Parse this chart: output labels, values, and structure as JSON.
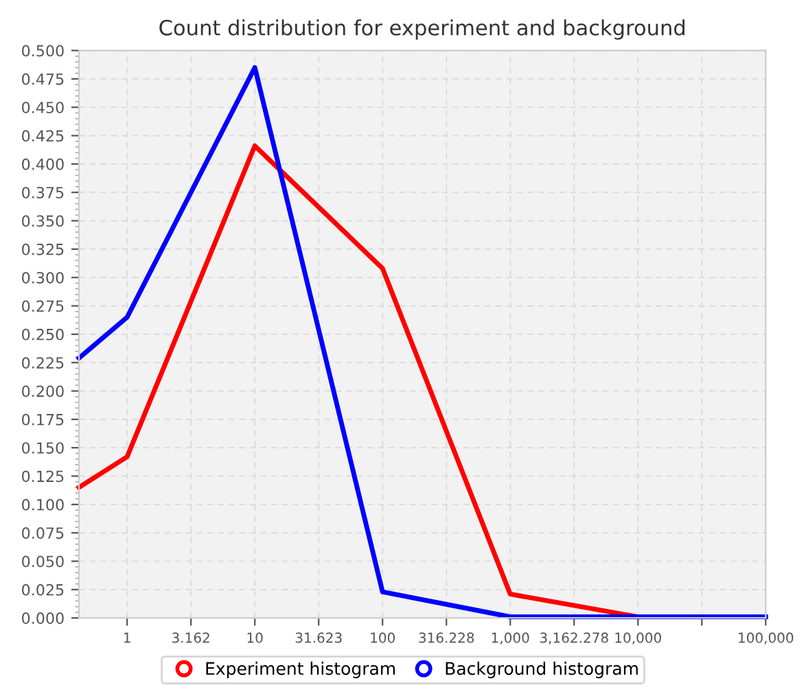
{
  "chart_data": {
    "type": "line",
    "title": "Count distribution for experiment and background",
    "x": [
      0.42,
      1,
      10,
      100,
      1000,
      10000,
      100000
    ],
    "series": [
      {
        "name": "Experiment histogram",
        "color": "#ff0000",
        "values": [
          0.115,
          0.142,
          0.416,
          0.308,
          0.021,
          0.001,
          null
        ]
      },
      {
        "name": "Background histogram",
        "color": "#0000ff",
        "values": [
          0.229,
          0.265,
          0.485,
          0.023,
          0.001,
          0.001,
          0.001
        ]
      }
    ],
    "log": "x",
    "xlim": [
      0.42,
      100000
    ],
    "xticks": [
      1,
      {
        "value": 3.162,
        "label": "3.162"
      },
      10,
      {
        "value": 31.623,
        "label": "31.623"
      },
      100,
      {
        "value": 316.228,
        "label": "316.228"
      },
      {
        "value": 1000,
        "label": "1,000"
      },
      {
        "value": 3162.278,
        "label": "3,162.278"
      },
      {
        "value": 10000,
        "label": "10,000"
      },
      {
        "value": 31622.777,
        "label": null
      },
      {
        "value": 100000,
        "label": "100,000"
      }
    ],
    "ylim": [
      0,
      0.5
    ],
    "yticks": [
      {
        "value": 0,
        "label": "0.000"
      },
      {
        "value": 0.025,
        "label": "0.025"
      },
      {
        "value": 0.05,
        "label": "0.050"
      },
      {
        "value": 0.075,
        "label": "0.075"
      },
      {
        "value": 0.1,
        "label": "0.100"
      },
      {
        "value": 0.125,
        "label": "0.125"
      },
      {
        "value": 0.15,
        "label": "0.150"
      },
      {
        "value": 0.175,
        "label": "0.175"
      },
      {
        "value": 0.2,
        "label": "0.200"
      },
      {
        "value": 0.225,
        "label": "0.225"
      },
      {
        "value": 0.25,
        "label": "0.250"
      },
      {
        "value": 0.275,
        "label": "0.275"
      },
      {
        "value": 0.3,
        "label": "0.300"
      },
      {
        "value": 0.325,
        "label": "0.325"
      },
      {
        "value": 0.35,
        "label": "0.350"
      },
      {
        "value": 0.375,
        "label": "0.375"
      },
      {
        "value": 0.4,
        "label": "0.400"
      },
      {
        "value": 0.425,
        "label": "0.425"
      },
      {
        "value": 0.45,
        "label": "0.450"
      },
      {
        "value": 0.475,
        "label": "0.475"
      },
      {
        "value": 0.5,
        "label": "0.500"
      }
    ],
    "grid": true,
    "legend": "bottom",
    "line_style": "solid"
  }
}
